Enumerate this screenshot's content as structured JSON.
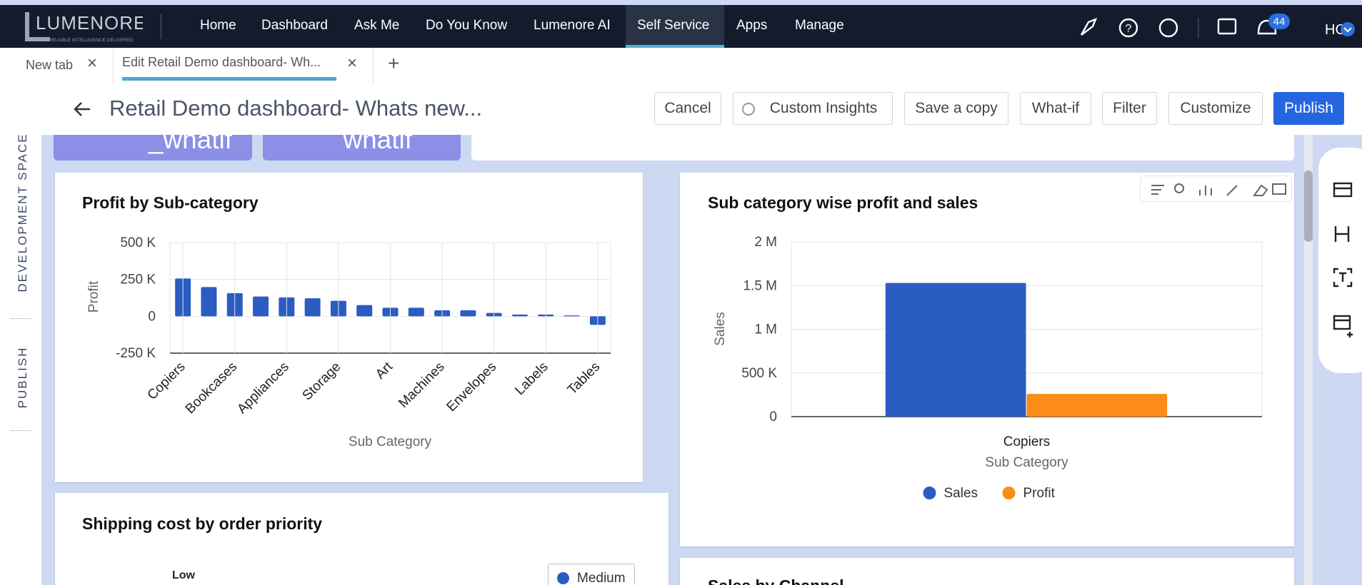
{
  "nav": {
    "logo": "LUMENORE",
    "tagline": "RELIABLE INTELLIGENCE DELIVERED",
    "items": [
      "Home",
      "Dashboard",
      "Ask Me",
      "Do You Know",
      "Lumenore AI",
      "Self Service",
      "Apps",
      "Manage"
    ],
    "notifications": 44,
    "user": "HC"
  },
  "tabs": [
    "New tab",
    "Edit Retail Demo dashboard- Wh..."
  ],
  "sidebar": [
    "DEVELOPMENT SPACE",
    "PUBLISH"
  ],
  "toolbar": {
    "title": "Retail Demo dashboard- Whats new...",
    "buttons": [
      "Cancel",
      "Custom Insights",
      "Save a copy",
      "What-if",
      "Filter",
      "Customize",
      "Publish"
    ]
  },
  "whatif_widgets": [
    "_whatif",
    "whatif"
  ],
  "chart_data": [
    {
      "type": "bar",
      "title": "Profit by Sub-category",
      "x_label": "Sub Category",
      "y_label": "Profit",
      "categories": [
        "Copiers",
        null,
        "Bookcases",
        null,
        "Appliances",
        null,
        "Storage",
        null,
        "Art",
        null,
        "Machines",
        null,
        "Envelopes",
        null,
        "Labels",
        null,
        "Tables"
      ],
      "values": [
        256000,
        198000,
        157000,
        134000,
        128000,
        122000,
        105000,
        76000,
        58000,
        58000,
        41000,
        41000,
        23000,
        12000,
        12000,
        6000,
        -58000
      ],
      "color": "#2b5cc2",
      "ylim": [
        -250000,
        500000
      ],
      "yticks": [
        {
          "value": -250000,
          "label": "-250 K"
        },
        0,
        {
          "value": 250000,
          "label": "250 K"
        },
        {
          "value": 500000,
          "label": "500 K"
        }
      ],
      "grid": true
    },
    {
      "type": "bar",
      "title": "Sub category wise profit and sales",
      "x_label": "Sub Category",
      "y_label": "Sales",
      "categories": [
        "Copiers"
      ],
      "series": [
        {
          "name": "Sales",
          "color": "#2b5cc2",
          "values": [
            1530000
          ]
        },
        {
          "name": "Profit",
          "color": "#fb8c17",
          "values": [
            260000
          ]
        }
      ],
      "ylim": [
        0,
        2000000
      ],
      "yticks": [
        0,
        {
          "value": 500000,
          "label": "500 K"
        },
        {
          "value": 1000000,
          "label": "1 M"
        },
        {
          "value": 1500000,
          "label": "1.5 M"
        },
        {
          "value": 2000000,
          "label": "2 M"
        }
      ],
      "grid": true,
      "legend": "bottom"
    }
  ],
  "partial_widgets": [
    {
      "title": "Shipping cost by order priority",
      "labels": [
        "Low"
      ],
      "legend": [
        "Medium"
      ]
    },
    {
      "title": "Sales by Channel"
    }
  ]
}
